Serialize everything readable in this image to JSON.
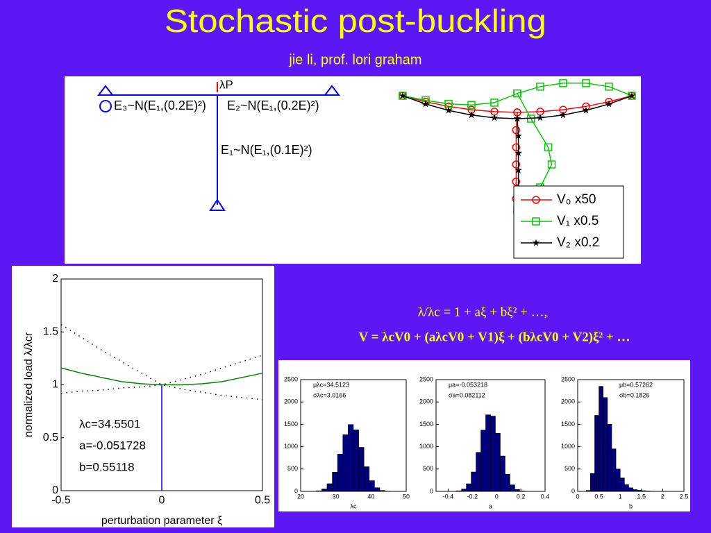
{
  "header": {
    "title": "Stochastic post-buckling",
    "subtitle": "jie li, prof. lori graham"
  },
  "diagram": {
    "load": "λP",
    "left": "E₃~N(E₁,(0.2E)²)",
    "right": "E₂~N(E₁,(0.2E)²)",
    "column": "E₁~N(E₁,(0.1E)²)"
  },
  "equations": [
    "λ/λc = 1 + aξ + bξ² + …,",
    "V = λcV0 + (aλcV0 + V1)ξ + (bλcV0 + V2)ξ² + …"
  ],
  "chart_data": [
    {
      "type": "line",
      "legend": "lower right",
      "series": [
        {
          "name": "V₀ x50",
          "color": "#ff0000",
          "marker": "o",
          "x": [
            -1,
            -0.8,
            -0.6,
            -0.4,
            -0.2,
            0,
            0.2,
            0.4,
            0.6,
            0.8,
            1,
            null,
            0,
            -0.01,
            -0.01,
            -0.01,
            -0.01,
            -0.01
          ],
          "values": [
            0,
            -0.052,
            -0.093,
            -0.122,
            -0.139,
            -0.145,
            -0.139,
            -0.122,
            -0.093,
            -0.052,
            0,
            null,
            -0.145,
            -0.3,
            -0.45,
            -0.6,
            -0.75,
            -0.9
          ]
        },
        {
          "name": "V₁ x0.5",
          "color": "#00cc00",
          "marker": "s",
          "x": [
            -1,
            -0.8,
            -0.6,
            -0.4,
            -0.2,
            0,
            0.2,
            0.4,
            0.6,
            0.8,
            1,
            null,
            0,
            0.12,
            0.27,
            0.3,
            0.2,
            0
          ],
          "values": [
            0,
            -0.04,
            -0.07,
            -0.08,
            -0.06,
            0.02,
            0.08,
            0.11,
            0.11,
            0.08,
            0,
            null,
            0.02,
            -0.2,
            -0.45,
            -0.6,
            -0.8,
            -1.0
          ]
        },
        {
          "name": "V₂ x0.2",
          "color": "#000000",
          "marker": "*",
          "x": [
            -1,
            -0.8,
            -0.6,
            -0.4,
            -0.2,
            0,
            0.2,
            0.4,
            0.6,
            0.8,
            1,
            null,
            0,
            0.01,
            0.01,
            0.01,
            0.01,
            0.01
          ],
          "values": [
            0,
            -0.072,
            -0.128,
            -0.168,
            -0.192,
            -0.2,
            -0.192,
            -0.168,
            -0.128,
            -0.072,
            0,
            null,
            -0.2,
            -0.35,
            -0.5,
            -0.65,
            -0.8,
            -0.95
          ]
        }
      ]
    },
    {
      "type": "line",
      "xlabel": "perturbation parameter ξ",
      "ylabel": "normalized load λ/λcr",
      "xlim": [
        -0.5,
        0.5
      ],
      "ylim": [
        0,
        2
      ],
      "xticks": [
        -0.5,
        0,
        0.5
      ],
      "yticks": [
        0,
        0.5,
        1,
        1.5,
        2
      ],
      "annotations": [
        "λc=34.5501",
        "a=-0.051728",
        "b=0.55118"
      ],
      "series": [
        {
          "color": "#008000",
          "linestyle": "solid",
          "x": [
            -0.5,
            -0.4,
            -0.3,
            -0.2,
            -0.1,
            0,
            0.1,
            0.2,
            0.3,
            0.4,
            0.5
          ],
          "values": [
            1.16,
            1.11,
            1.07,
            1.03,
            1.01,
            1,
            1.0,
            1.01,
            1.03,
            1.07,
            1.11
          ]
        },
        {
          "color": "#000000",
          "linestyle": "dotted",
          "x": [
            -0.5,
            -0.4,
            -0.3,
            -0.2,
            -0.1,
            0,
            0.1,
            0.2,
            0.3,
            0.4,
            0.5
          ],
          "values": [
            1.57,
            1.45,
            1.33,
            1.22,
            1.11,
            1,
            0.96,
            0.93,
            0.9,
            0.88,
            0.86
          ]
        },
        {
          "color": "#000000",
          "linestyle": "dotted",
          "x": [
            -0.5,
            -0.4,
            -0.3,
            -0.2,
            -0.1,
            0,
            0.1,
            0.2,
            0.3,
            0.4,
            0.5
          ],
          "values": [
            0.92,
            0.94,
            0.95,
            0.97,
            0.98,
            1,
            1.05,
            1.1,
            1.16,
            1.22,
            1.28
          ]
        },
        {
          "color": "#0000ff",
          "linestyle": "solid",
          "x": [
            0,
            0
          ],
          "values": [
            0,
            1
          ]
        }
      ]
    },
    {
      "type": "histogram",
      "color": "#00007f",
      "xlabel": "λc",
      "annotations": [
        "μλc=34.5123",
        "σλc=3.0166"
      ],
      "xlim": [
        20,
        50
      ],
      "ylim": [
        0,
        2500
      ],
      "xticks": [
        20,
        30,
        40,
        50
      ],
      "yticks": [
        0,
        500,
        1000,
        1500,
        2000,
        2500
      ],
      "bins": [
        23,
        24.5,
        26,
        27.5,
        29,
        30.5,
        32,
        33.5,
        35,
        36.5,
        38,
        39.5,
        41,
        42.5,
        44,
        45.5,
        47
      ],
      "values": [
        2,
        13,
        53,
        171,
        429,
        834,
        1266,
        1495,
        1376,
        985,
        551,
        238,
        81,
        21,
        4,
        1
      ]
    },
    {
      "type": "histogram",
      "color": "#00007f",
      "xlabel": "a",
      "annotations": [
        "μa=-0.053218",
        "σa=0.082112"
      ],
      "xlim": [
        -0.5,
        0.4
      ],
      "ylim": [
        0,
        2500
      ],
      "xticks": [
        -0.4,
        -0.2,
        0,
        0.2,
        0.4
      ],
      "yticks": [
        0,
        500,
        1000,
        1500,
        2000,
        2500
      ],
      "bins": [
        -0.33,
        -0.29,
        -0.25,
        -0.21,
        -0.17,
        -0.13,
        -0.09,
        -0.05,
        -0.01,
        0.03,
        0.07,
        0.11,
        0.15,
        0.19,
        0.23
      ],
      "values": [
        13,
        52,
        170,
        434,
        872,
        1370,
        1712,
        1684,
        1300,
        791,
        385,
        145,
        44,
        11
      ]
    },
    {
      "type": "histogram",
      "color": "#00007f",
      "xlabel": "b",
      "annotations": [
        "μb=0.57262",
        "σb=0.1826"
      ],
      "xlim": [
        0,
        2.5
      ],
      "ylim": [
        0,
        2500
      ],
      "xticks": [
        0,
        0.5,
        1,
        1.5,
        2,
        2.5
      ],
      "yticks": [
        0,
        500,
        1000,
        1500,
        2000,
        2500
      ],
      "bins": [
        0.2,
        0.3,
        0.4,
        0.5,
        0.6,
        0.7,
        0.8,
        0.9,
        1.0,
        1.1,
        1.2,
        1.3,
        1.4,
        1.5,
        1.6,
        1.7,
        1.8,
        1.9,
        2.0,
        2.1
      ],
      "values": [
        20,
        400,
        1700,
        2350,
        2100,
        1500,
        950,
        500,
        300,
        150,
        80,
        40,
        25,
        15,
        8,
        5,
        3,
        2,
        1
      ]
    }
  ]
}
